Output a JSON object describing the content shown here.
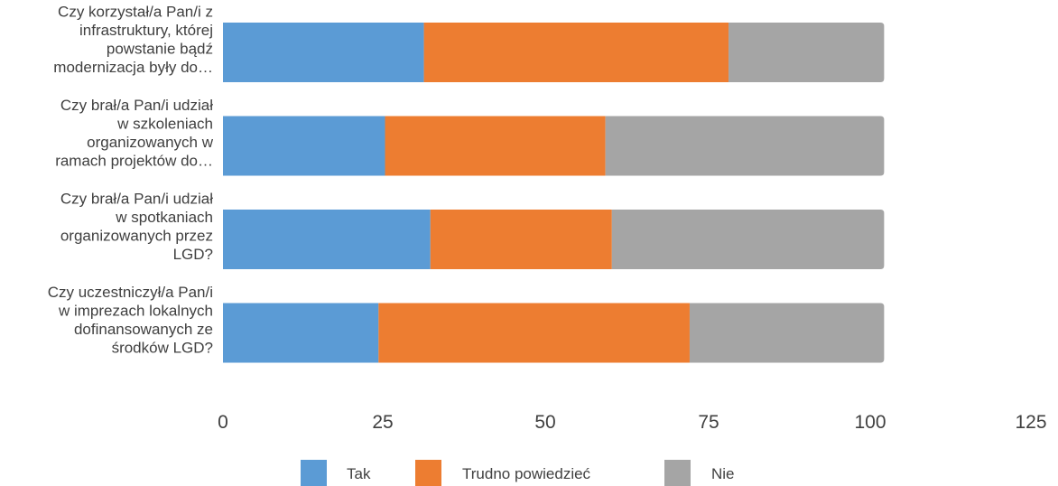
{
  "chart_data": {
    "type": "bar",
    "orientation": "horizontal",
    "stacked": true,
    "categories": [
      [
        "Czy korzystał/a Pan/i z",
        "infrastruktury, której",
        "powstanie bądź",
        "modernizacja były do…"
      ],
      [
        "Czy brał/a Pan/i udział",
        "w szkoleniach",
        "organizowanych w",
        "ramach projektów do…"
      ],
      [
        "Czy brał/a Pan/i udział",
        "w spotkaniach",
        "organizowanych przez",
        "LGD?"
      ],
      [
        "Czy uczestniczył/a Pan/i",
        "w imprezach lokalnych",
        "dofinansowanych ze",
        "środków LGD?"
      ]
    ],
    "series": [
      {
        "name": "Tak",
        "color": "#5b9bd5",
        "values": [
          31,
          25,
          32,
          24
        ]
      },
      {
        "name": "Trudno powiedzieć",
        "color": "#ed7d31",
        "values": [
          47,
          34,
          28,
          48
        ]
      },
      {
        "name": "Nie",
        "color": "#a5a5a5",
        "values": [
          24,
          43,
          42,
          30
        ]
      }
    ],
    "xlim": [
      0,
      125
    ],
    "xticks": [
      "0",
      "25",
      "50",
      "75",
      "100",
      "125"
    ],
    "grid": false,
    "legend_position": "bottom"
  }
}
